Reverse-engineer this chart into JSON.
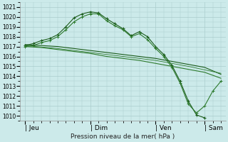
{
  "background_color": "#cceaea",
  "grid_color": "#aacccc",
  "line_color_dark": "#1a5c1a",
  "line_color_medium": "#2d7a2d",
  "ylabel_ticks": [
    1010,
    1011,
    1012,
    1013,
    1014,
    1015,
    1016,
    1017,
    1018,
    1019,
    1020,
    1021
  ],
  "ylim": [
    1009.5,
    1021.5
  ],
  "xlabel": "Pression niveau de la mer( hPa )",
  "xtick_labels": [
    "| Jeu",
    "| Dim",
    "| Ven",
    "| Sam"
  ],
  "xtick_positions": [
    0,
    4,
    8,
    11
  ],
  "x_total": 12,
  "xlim": [
    -0.3,
    12.3
  ],
  "line1_x": [
    0,
    0.5,
    1.0,
    1.5,
    2.0,
    2.5,
    3.0,
    3.5,
    4.0,
    4.5,
    5.0,
    5.5,
    6.0,
    6.5,
    7.0,
    7.5,
    8.0,
    8.5,
    9.0,
    9.5,
    10.0,
    10.5,
    11.0
  ],
  "line1_y": [
    1017.1,
    1017.3,
    1017.6,
    1017.8,
    1018.2,
    1019.0,
    1019.9,
    1020.3,
    1020.5,
    1020.4,
    1019.8,
    1019.3,
    1018.8,
    1018.1,
    1018.5,
    1018.0,
    1017.0,
    1016.2,
    1015.1,
    1013.5,
    1011.5,
    1010.1,
    1009.8
  ],
  "line2_x": [
    0,
    0.5,
    1.0,
    1.5,
    2.0,
    2.5,
    3.0,
    3.5,
    4.0,
    4.5,
    5.0,
    5.5,
    6.0,
    6.5,
    7.0,
    7.5,
    8.0,
    8.5,
    9.0,
    9.5,
    10.0,
    10.5,
    11.0,
    11.5,
    12.0
  ],
  "line2_y": [
    1017.0,
    1017.1,
    1017.4,
    1017.6,
    1018.0,
    1018.7,
    1019.5,
    1020.0,
    1020.3,
    1020.3,
    1019.6,
    1019.1,
    1018.7,
    1018.0,
    1018.3,
    1017.7,
    1016.8,
    1016.0,
    1014.9,
    1013.3,
    1011.2,
    1010.3,
    1011.0,
    1012.5,
    1013.5
  ],
  "line3_x": [
    0,
    1,
    2,
    3,
    4,
    5,
    6,
    7,
    8,
    9,
    10,
    11,
    12
  ],
  "line3_y": [
    1017.2,
    1017.1,
    1017.0,
    1016.8,
    1016.6,
    1016.4,
    1016.2,
    1016.0,
    1015.8,
    1015.5,
    1015.2,
    1014.9,
    1014.2
  ],
  "line4_x": [
    0,
    1,
    2,
    3,
    4,
    5,
    6,
    7,
    8,
    9,
    10,
    11,
    12
  ],
  "line4_y": [
    1017.0,
    1016.9,
    1016.7,
    1016.5,
    1016.3,
    1016.0,
    1015.8,
    1015.6,
    1015.3,
    1015.0,
    1014.7,
    1014.4,
    1013.8
  ],
  "line5_x": [
    0,
    2,
    4,
    6,
    8,
    10,
    12
  ],
  "line5_y": [
    1017.1,
    1016.8,
    1016.4,
    1016.0,
    1015.6,
    1015.0,
    1014.3
  ],
  "marker_line_x": [
    9.5,
    10.0,
    10.5,
    11.0,
    11.5,
    12.0
  ],
  "marker_line_y": [
    1013.5,
    1011.5,
    1010.1,
    1009.8,
    1011.5,
    1013.5
  ]
}
